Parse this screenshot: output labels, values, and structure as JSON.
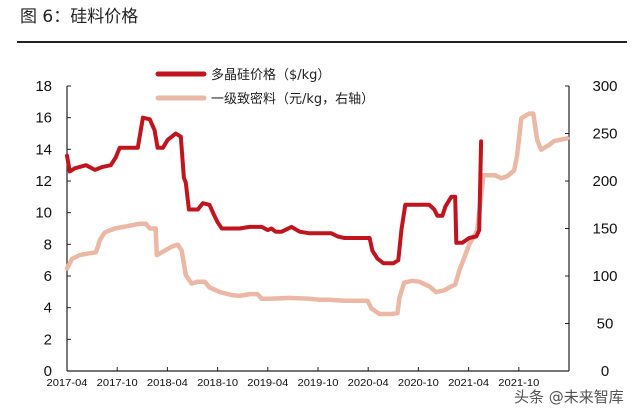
{
  "figure": {
    "title": "图 6：硅料价格",
    "watermark": "头条 @未来智库"
  },
  "chart_data": {
    "type": "line",
    "title": "",
    "xlabel": "",
    "ylabel": "",
    "y2label": "",
    "xlim": [
      "2017-04",
      "2022-04"
    ],
    "ylim": [
      0,
      18
    ],
    "y2lim": [
      0,
      300
    ],
    "x_ticks": [
      "2017-04",
      "2017-10",
      "2018-04",
      "2018-10",
      "2019-04",
      "2019-10",
      "2020-04",
      "2020-10",
      "2021-04",
      "2021-10"
    ],
    "y_ticks": [
      "0",
      "2",
      "4",
      "6",
      "8",
      "10",
      "12",
      "14",
      "16",
      "18"
    ],
    "y2_ticks": [
      "0",
      "50",
      "100",
      "150",
      "200",
      "250",
      "300"
    ],
    "grid": false,
    "legend_position": "top-center",
    "series": [
      {
        "name": "多晶硅价格（$/kg）",
        "axis": "left",
        "color": "#c0141f",
        "points": [
          [
            "2017-04-01",
            13.6
          ],
          [
            "2017-04-11",
            12.6
          ],
          [
            "2017-04-29",
            12.8
          ],
          [
            "2017-06-09",
            13.0
          ],
          [
            "2017-07-11",
            12.7
          ],
          [
            "2017-08-10",
            12.9
          ],
          [
            "2017-09-08",
            13.0
          ],
          [
            "2017-09-26",
            13.5
          ],
          [
            "2017-10-10",
            14.1
          ],
          [
            "2017-12-15",
            14.1
          ],
          [
            "2018-01-03",
            16.0
          ],
          [
            "2018-01-28",
            15.9
          ],
          [
            "2018-02-15",
            15.2
          ],
          [
            "2018-02-26",
            14.1
          ],
          [
            "2018-03-15",
            14.1
          ],
          [
            "2018-04-02",
            14.6
          ],
          [
            "2018-05-01",
            15.0
          ],
          [
            "2018-05-19",
            14.8
          ],
          [
            "2018-05-30",
            12.2
          ],
          [
            "2018-06-07",
            11.9
          ],
          [
            "2018-06-18",
            10.2
          ],
          [
            "2018-07-20",
            10.2
          ],
          [
            "2018-08-08",
            10.6
          ],
          [
            "2018-09-02",
            10.5
          ],
          [
            "2018-09-17",
            9.9
          ],
          [
            "2018-10-01",
            9.4
          ],
          [
            "2018-10-16",
            9.0
          ],
          [
            "2018-12-02",
            9.0
          ],
          [
            "2018-12-20",
            9.0
          ],
          [
            "2019-01-26",
            9.1
          ],
          [
            "2019-03-09",
            9.1
          ],
          [
            "2019-03-31",
            8.9
          ],
          [
            "2019-04-14",
            9.0
          ],
          [
            "2019-04-29",
            8.8
          ],
          [
            "2019-05-21",
            8.8
          ],
          [
            "2019-06-26",
            9.1
          ],
          [
            "2019-07-25",
            8.8
          ],
          [
            "2019-09-01",
            8.7
          ],
          [
            "2019-11-19",
            8.7
          ],
          [
            "2019-12-11",
            8.5
          ],
          [
            "2020-01-06",
            8.4
          ],
          [
            "2020-04-06",
            8.4
          ],
          [
            "2020-04-16",
            7.6
          ],
          [
            "2020-05-04",
            7.1
          ],
          [
            "2020-05-26",
            6.8
          ],
          [
            "2020-07-01",
            6.8
          ],
          [
            "2020-07-19",
            7.0
          ],
          [
            "2020-07-30",
            8.9
          ],
          [
            "2020-08-14",
            10.5
          ],
          [
            "2020-11-10",
            10.5
          ],
          [
            "2020-11-28",
            10.2
          ],
          [
            "2020-12-09",
            9.8
          ],
          [
            "2020-12-27",
            9.8
          ],
          [
            "2021-01-08",
            10.4
          ],
          [
            "2021-01-29",
            11.0
          ],
          [
            "2021-02-13",
            11.0
          ],
          [
            "2021-02-17",
            8.1
          ],
          [
            "2021-03-08",
            8.1
          ],
          [
            "2021-04-03",
            8.4
          ],
          [
            "2021-04-29",
            8.5
          ],
          [
            "2021-05-09",
            8.9
          ],
          [
            "2021-05-16",
            14.5
          ]
        ]
      },
      {
        "name": "一级致密料（元/kg，右轴）",
        "axis": "right",
        "color": "#ebb8a6",
        "points": [
          [
            "2017-04-01",
            108
          ],
          [
            "2017-04-19",
            118
          ],
          [
            "2017-05-17",
            122
          ],
          [
            "2017-06-23",
            124
          ],
          [
            "2017-07-15",
            125
          ],
          [
            "2017-07-29",
            138
          ],
          [
            "2017-08-17",
            146
          ],
          [
            "2017-09-22",
            150
          ],
          [
            "2017-11-16",
            153
          ],
          [
            "2017-12-22",
            155
          ],
          [
            "2018-01-14",
            155
          ],
          [
            "2018-01-28",
            150
          ],
          [
            "2018-02-19",
            150
          ],
          [
            "2018-02-23",
            122
          ],
          [
            "2018-03-11",
            125
          ],
          [
            "2018-04-17",
            131
          ],
          [
            "2018-05-08",
            133
          ],
          [
            "2018-05-22",
            127
          ],
          [
            "2018-06-07",
            101
          ],
          [
            "2018-06-28",
            92
          ],
          [
            "2018-07-20",
            94
          ],
          [
            "2018-08-15",
            94
          ],
          [
            "2018-09-02",
            88
          ],
          [
            "2018-10-09",
            83
          ],
          [
            "2018-11-21",
            80
          ],
          [
            "2018-12-20",
            79
          ],
          [
            "2019-01-26",
            81
          ],
          [
            "2019-02-24",
            81
          ],
          [
            "2019-03-09",
            76
          ],
          [
            "2019-04-08",
            76
          ],
          [
            "2019-06-19",
            77
          ],
          [
            "2019-09-01",
            76
          ],
          [
            "2019-10-07",
            75
          ],
          [
            "2019-11-12",
            75
          ],
          [
            "2020-01-06",
            74
          ],
          [
            "2020-03-29",
            74
          ],
          [
            "2020-04-12",
            66
          ],
          [
            "2020-05-11",
            60
          ],
          [
            "2020-06-24",
            60
          ],
          [
            "2020-07-16",
            61
          ],
          [
            "2020-07-23",
            77
          ],
          [
            "2020-08-10",
            93
          ],
          [
            "2020-09-09",
            95
          ],
          [
            "2020-10-04",
            94
          ],
          [
            "2020-11-10",
            89
          ],
          [
            "2020-12-05",
            83
          ],
          [
            "2021-01-04",
            85
          ],
          [
            "2021-01-29",
            89
          ],
          [
            "2021-02-13",
            91
          ],
          [
            "2021-02-28",
            106
          ],
          [
            "2021-04-03",
            133
          ],
          [
            "2021-05-02",
            148
          ],
          [
            "2021-05-24",
            206
          ],
          [
            "2021-07-06",
            206
          ],
          [
            "2021-07-28",
            203
          ],
          [
            "2021-08-19",
            205
          ],
          [
            "2021-09-14",
            211
          ],
          [
            "2021-09-25",
            227
          ],
          [
            "2021-10-10",
            266
          ],
          [
            "2021-11-08",
            271
          ],
          [
            "2021-11-23",
            271
          ],
          [
            "2021-12-07",
            243
          ],
          [
            "2021-12-21",
            233
          ],
          [
            "2022-01-20",
            238
          ],
          [
            "2022-02-07",
            242
          ],
          [
            "2022-03-25",
            245
          ]
        ]
      }
    ]
  }
}
